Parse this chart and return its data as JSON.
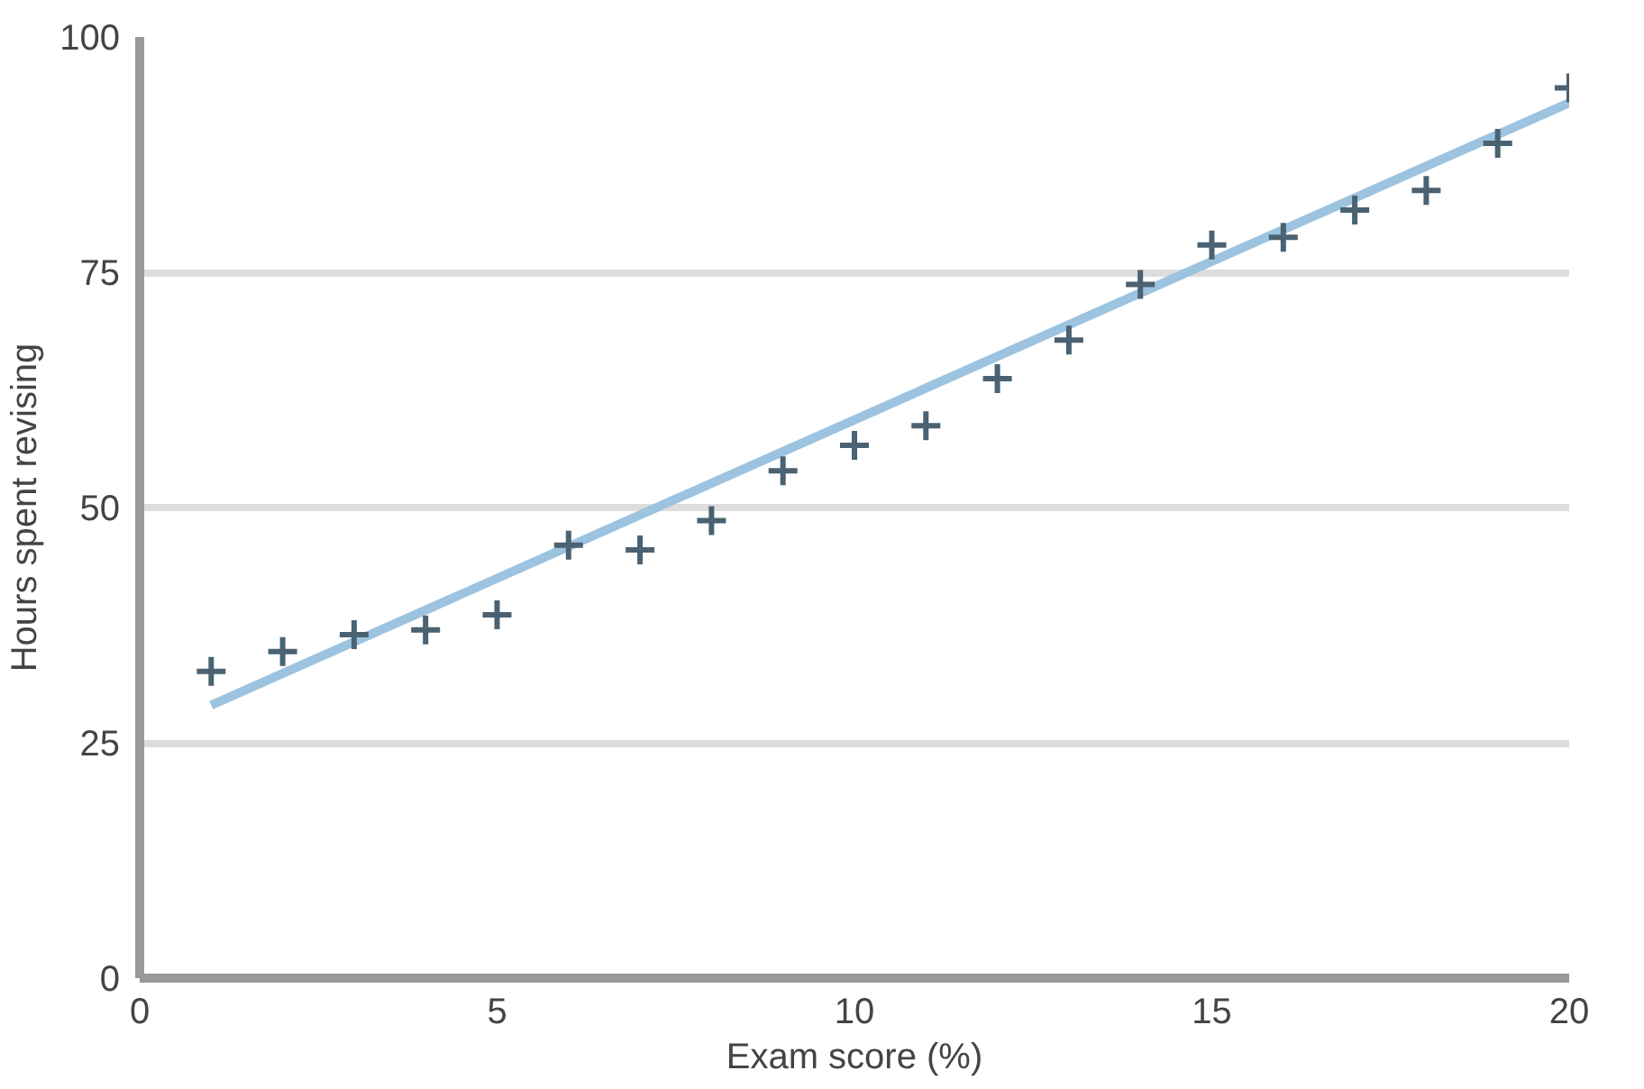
{
  "chart_data": {
    "type": "scatter",
    "xlabel": "Exam score (%)",
    "ylabel": "Hours spent revising",
    "xlim": [
      0,
      20
    ],
    "ylim": [
      0,
      100
    ],
    "xticks": [
      0,
      5,
      10,
      15,
      20
    ],
    "yticks": [
      0,
      25,
      50,
      75,
      100
    ],
    "grid": "y",
    "series": [
      {
        "type": "line",
        "marker": "none",
        "color": "#9cc3e0",
        "x": [
          1,
          20
        ],
        "values": [
          29,
          93
        ]
      },
      {
        "marker": "cross",
        "color": "#4a6272",
        "x": [
          1,
          2,
          3,
          4,
          5,
          6,
          7,
          8,
          9,
          10,
          11,
          12,
          13,
          14,
          15,
          16,
          17,
          18,
          19,
          20
        ],
        "values": [
          32.6,
          34.7,
          36.5,
          37,
          38.6,
          46,
          45.5,
          48.6,
          53.9,
          56.6,
          58.7,
          63.7,
          67.8,
          73.7,
          77.9,
          78.7,
          81.6,
          83.7,
          88.7,
          94.6
        ]
      }
    ]
  }
}
